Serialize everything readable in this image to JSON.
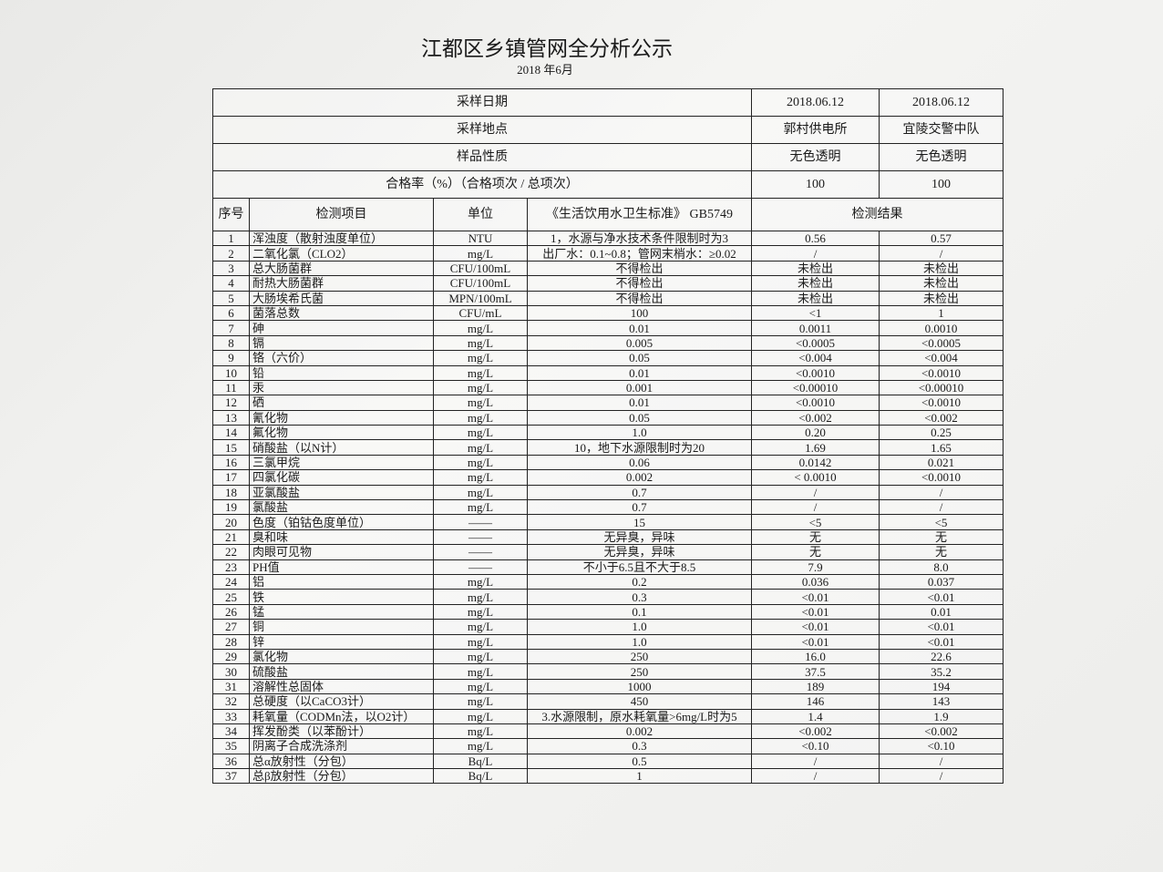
{
  "header": {
    "title": "江都区乡镇管网全分析公示",
    "subtitle": "2018 年6月"
  },
  "table": {
    "info_rows": [
      [
        "采样日期",
        "2018.06.12",
        "2018.06.12"
      ],
      [
        "采样地点",
        "郭村供电所",
        "宜陵交警中队"
      ],
      [
        "样品性质",
        "无色透明",
        "无色透明"
      ],
      [
        "合格率（%）（合格项次 / 总项次）",
        "100",
        "100"
      ]
    ],
    "columns": [
      "序号",
      "检测项目",
      "单位",
      "《生活饮用水卫生标准》 GB5749",
      "检测结果"
    ],
    "rows": [
      [
        "1",
        "浑浊度（散射浊度单位）",
        "NTU",
        "1，水源与净水技术条件限制时为3",
        "0.56",
        "0.57"
      ],
      [
        "2",
        "二氧化氯（CLO2）",
        "mg/L",
        "出厂水：0.1~0.8；管网末梢水：≥0.02",
        "/",
        "/"
      ],
      [
        "3",
        "总大肠菌群",
        "CFU/100mL",
        "不得检出",
        "未检出",
        "未检出"
      ],
      [
        "4",
        "耐热大肠菌群",
        "CFU/100mL",
        "不得检出",
        "未检出",
        "未检出"
      ],
      [
        "5",
        "大肠埃希氏菌",
        "MPN/100mL",
        "不得检出",
        "未检出",
        "未检出"
      ],
      [
        "6",
        "菌落总数",
        "CFU/mL",
        "100",
        "<1",
        "1"
      ],
      [
        "7",
        "砷",
        "mg/L",
        "0.01",
        "0.0011",
        "0.0010"
      ],
      [
        "8",
        "镉",
        "mg/L",
        "0.005",
        "<0.0005",
        "<0.0005"
      ],
      [
        "9",
        "铬（六价）",
        "mg/L",
        "0.05",
        "<0.004",
        "<0.004"
      ],
      [
        "10",
        "铅",
        "mg/L",
        "0.01",
        "<0.0010",
        "<0.0010"
      ],
      [
        "11",
        "汞",
        "mg/L",
        "0.001",
        "<0.00010",
        "<0.00010"
      ],
      [
        "12",
        "硒",
        "mg/L",
        "0.01",
        "<0.0010",
        "<0.0010"
      ],
      [
        "13",
        "氰化物",
        "mg/L",
        "0.05",
        "<0.002",
        "<0.002"
      ],
      [
        "14",
        "氟化物",
        "mg/L",
        "1.0",
        "0.20",
        "0.25"
      ],
      [
        "15",
        "硝酸盐（以N计）",
        "mg/L",
        "10，地下水源限制时为20",
        "1.69",
        "1.65"
      ],
      [
        "16",
        "三氯甲烷",
        "mg/L",
        "0.06",
        "0.0142",
        "0.021"
      ],
      [
        "17",
        "四氯化碳",
        "mg/L",
        "0.002",
        "< 0.0010",
        "<0.0010"
      ],
      [
        "18",
        "亚氯酸盐",
        "mg/L",
        "0.7",
        "/",
        "/"
      ],
      [
        "19",
        "氯酸盐",
        "mg/L",
        "0.7",
        "/",
        "/"
      ],
      [
        "20",
        "色度（铂钴色度单位）",
        "——",
        "15",
        "<5",
        "<5"
      ],
      [
        "21",
        "臭和味",
        "——",
        "无异臭，异味",
        "无",
        "无"
      ],
      [
        "22",
        "肉眼可见物",
        "——",
        "无异臭，异味",
        "无",
        "无"
      ],
      [
        "23",
        "PH值",
        "——",
        "不小于6.5且不大于8.5",
        "7.9",
        "8.0"
      ],
      [
        "24",
        "铝",
        "mg/L",
        "0.2",
        "0.036",
        "0.037"
      ],
      [
        "25",
        "铁",
        "mg/L",
        "0.3",
        "<0.01",
        "<0.01"
      ],
      [
        "26",
        "锰",
        "mg/L",
        "0.1",
        "<0.01",
        "0.01"
      ],
      [
        "27",
        "铜",
        "mg/L",
        "1.0",
        "<0.01",
        "<0.01"
      ],
      [
        "28",
        "锌",
        "mg/L",
        "1.0",
        "<0.01",
        "<0.01"
      ],
      [
        "29",
        "氯化物",
        "mg/L",
        "250",
        "16.0",
        "22.6"
      ],
      [
        "30",
        "硫酸盐",
        "mg/L",
        "250",
        "37.5",
        "35.2"
      ],
      [
        "31",
        "溶解性总固体",
        "mg/L",
        "1000",
        "189",
        "194"
      ],
      [
        "32",
        "总硬度（以CaCO3计）",
        "mg/L",
        "450",
        "146",
        "143"
      ],
      [
        "33",
        "耗氧量（CODMn法，以O2计）",
        "mg/L",
        "3.水源限制，原水耗氧量>6mg/L时为5",
        "1.4",
        "1.9"
      ],
      [
        "34",
        "挥发酚类（以苯酚计）",
        "mg/L",
        "0.002",
        "<0.002",
        "<0.002"
      ],
      [
        "35",
        "阴离子合成洗涤剂",
        "mg/L",
        "0.3",
        "<0.10",
        "<0.10"
      ],
      [
        "36",
        "总α放射性（分包）",
        "Bq/L",
        "0.5",
        "/",
        "/"
      ],
      [
        "37",
        "总β放射性（分包）",
        "Bq/L",
        "1",
        "/",
        "/"
      ]
    ]
  }
}
